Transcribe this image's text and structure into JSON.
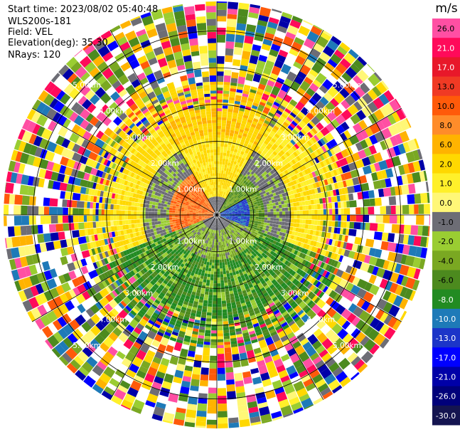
{
  "info": {
    "start_time": "Start time: 2023/08/02 05:40:48",
    "instrument": "WLS200s-181",
    "field": "Field: VEL",
    "elevation": "Elevation(deg): 35.30",
    "nrays": "NRays: 120"
  },
  "chart_data": {
    "type": "heatmap",
    "subtype": "ppi-polar",
    "grid": true,
    "range_ring_labels": [
      "1.00km",
      "2.00km",
      "3.00km",
      "4.00km",
      "5.00km"
    ],
    "range_rings_km": [
      1,
      2,
      3,
      4,
      5
    ],
    "max_range_km": 5.8,
    "colorbar": {
      "unit": "m/s",
      "tick_labels": [
        "26.0",
        "21.0",
        "17.0",
        "13.0",
        "10.0",
        "8.0",
        "6.0",
        "2.0",
        "1.0",
        "0.0",
        "-1.0",
        "-2.0",
        "-4.0",
        "-6.0",
        "-8.0",
        "-10.0",
        "-13.0",
        "-17.0",
        "-21.0",
        "-26.0",
        "-30.0"
      ],
      "colors": [
        "#ff4fa3",
        "#ff0a5a",
        "#e8182a",
        "#f03a24",
        "#ff5a0a",
        "#ff8c2a",
        "#ffb300",
        "#ffd800",
        "#fff02a",
        "#fff777",
        "#6d6d75",
        "#9acd32",
        "#7aa822",
        "#4c8a1e",
        "#228b22",
        "#1e7ab8",
        "#1c35c8",
        "#0000ff",
        "#0000a8",
        "#00007a",
        "#141450"
      ]
    }
  }
}
